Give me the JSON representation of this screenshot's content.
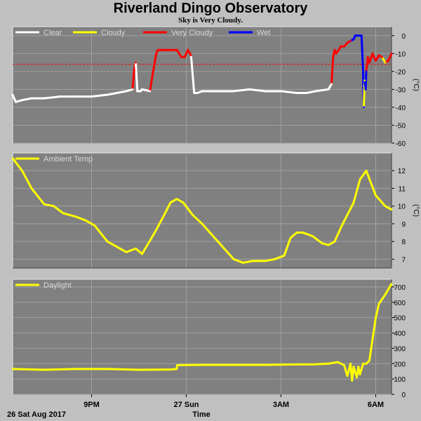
{
  "title": "Riverland Dingo Observatory",
  "subtitle": "Sky is Very Cloudy.",
  "x_axis": {
    "date_label": "26 Sat Aug 2017",
    "label": "Time",
    "ticks": [
      {
        "label": "9PM",
        "t": 2.5
      },
      {
        "label": "27 Sun",
        "t": 5.5
      },
      {
        "label": "3AM",
        "t": 8.5
      },
      {
        "label": "6AM",
        "t": 11.5
      }
    ],
    "start": "26 Aug 2017 18:30",
    "end": "27 Aug 2017 06:30"
  },
  "colors": {
    "background": "#c0c0c0",
    "plot": "#808080",
    "clear": "#ffffff",
    "cloudy": "#ffff00",
    "very_cloudy": "#ff0000",
    "wet": "#0000ff",
    "threshold": "#ff0000"
  },
  "chart_data": [
    {
      "type": "line",
      "ylabel": "(°C)",
      "ylim": [
        -60,
        5
      ],
      "yticks": [
        0,
        -10,
        -20,
        -30,
        -40,
        -50,
        -60
      ],
      "threshold": -16,
      "grid": true,
      "legend": [
        "Clear",
        "Cloudy",
        "Very Cloudy",
        "Wet"
      ],
      "series": [
        {
          "t": [
            0.0,
            0.1,
            0.3,
            0.6,
            1.0,
            1.5,
            2.0,
            2.5,
            3.0,
            3.3,
            3.6,
            3.8,
            3.85,
            3.9,
            3.95,
            4.05,
            4.1,
            4.35,
            4.45,
            4.55,
            4.6,
            4.7,
            5.2,
            5.35,
            5.45,
            5.55,
            5.65,
            5.75,
            5.85,
            6.0,
            6.5,
            7.0,
            7.5,
            8.0,
            8.5,
            9.0,
            9.3,
            9.6,
            10.0,
            10.1,
            10.15,
            10.2,
            10.25,
            10.4,
            10.5,
            10.6,
            10.7,
            10.8,
            10.85,
            10.9,
            11.0,
            11.05,
            11.1,
            11.12,
            11.15,
            11.18,
            11.2,
            11.25,
            11.3,
            11.4,
            11.5,
            11.6,
            11.7,
            11.8,
            11.9,
            12.0
          ],
          "y": [
            -33,
            -37,
            -36,
            -35,
            -35,
            -34,
            -34,
            -34,
            -33,
            -32,
            -31,
            -30,
            -19,
            -15,
            -31,
            -31,
            -30,
            -31,
            -20,
            -10,
            -8,
            -8,
            -8,
            -12,
            -12,
            -8,
            -11,
            -32,
            -32,
            -31,
            -31,
            -31,
            -30,
            -31,
            -31,
            -32,
            -32,
            -31,
            -30,
            -27,
            -12,
            -8,
            -10,
            -6,
            -6,
            -4,
            -3,
            -2,
            0,
            0,
            0,
            0,
            -20,
            -40,
            -25,
            -30,
            -20,
            -12,
            -15,
            -10,
            -14,
            -11,
            -12,
            -15,
            -14,
            -10
          ],
          "state": [
            "clear",
            "clear",
            "clear",
            "clear",
            "clear",
            "clear",
            "clear",
            "clear",
            "clear",
            "clear",
            "clear",
            "clear",
            "very_cloudy",
            "very_cloudy",
            "clear",
            "clear",
            "clear",
            "clear",
            "very_cloudy",
            "very_cloudy",
            "very_cloudy",
            "very_cloudy",
            "very_cloudy",
            "very_cloudy",
            "very_cloudy",
            "very_cloudy",
            "very_cloudy",
            "clear",
            "clear",
            "clear",
            "clear",
            "clear",
            "clear",
            "clear",
            "clear",
            "clear",
            "clear",
            "clear",
            "clear",
            "clear",
            "very_cloudy",
            "very_cloudy",
            "very_cloudy",
            "very_cloudy",
            "very_cloudy",
            "very_cloudy",
            "very_cloudy",
            "wet",
            "wet",
            "wet",
            "wet",
            "wet",
            "wet",
            "wet",
            "cloudy",
            "wet",
            "wet",
            "very_cloudy",
            "very_cloudy",
            "very_cloudy",
            "very_cloudy",
            "very_cloudy",
            "very_cloudy",
            "cloudy",
            "very_cloudy",
            "very_cloudy"
          ]
        }
      ]
    },
    {
      "type": "line",
      "ylabel": "(°C)",
      "ylim": [
        6.5,
        13
      ],
      "yticks": [
        12,
        11,
        10,
        9,
        8,
        7
      ],
      "grid": true,
      "legend": [
        "Ambient Temp"
      ],
      "series": [
        {
          "name": "Ambient Temp",
          "t": [
            0.0,
            0.3,
            0.6,
            1.0,
            1.3,
            1.6,
            2.0,
            2.3,
            2.6,
            3.0,
            3.3,
            3.6,
            3.9,
            4.1,
            4.5,
            4.8,
            5.0,
            5.2,
            5.4,
            5.7,
            6.0,
            6.5,
            7.0,
            7.3,
            7.6,
            8.0,
            8.3,
            8.6,
            8.8,
            9.0,
            9.2,
            9.5,
            9.8,
            10.0,
            10.2,
            10.4,
            10.6,
            10.8,
            11.0,
            11.2,
            11.5,
            11.8,
            12.0
          ],
          "values": [
            12.7,
            12.0,
            11.0,
            10.1,
            10.0,
            9.6,
            9.4,
            9.2,
            8.9,
            8.0,
            7.7,
            7.4,
            7.6,
            7.3,
            8.5,
            9.5,
            10.2,
            10.4,
            10.2,
            9.5,
            9.0,
            8.0,
            7.0,
            6.8,
            6.9,
            6.9,
            7.0,
            7.2,
            8.2,
            8.5,
            8.5,
            8.3,
            7.9,
            7.8,
            8.0,
            8.8,
            9.5,
            10.2,
            11.5,
            12.0,
            10.6,
            10.0,
            9.8
          ]
        }
      ]
    },
    {
      "type": "line",
      "ylabel": "",
      "ylim": [
        0,
        750
      ],
      "yticks": [
        700,
        600,
        500,
        400,
        300,
        200,
        100,
        0
      ],
      "grid": true,
      "legend": [
        "Daylight"
      ],
      "series": [
        {
          "name": "Daylight",
          "t": [
            0.0,
            1.0,
            2.0,
            3.0,
            4.0,
            5.0,
            5.2,
            5.21,
            6.0,
            7.0,
            8.0,
            9.0,
            9.5,
            10.0,
            10.3,
            10.5,
            10.6,
            10.7,
            10.75,
            10.8,
            10.9,
            10.95,
            11.0,
            11.1,
            11.2,
            11.3,
            11.5,
            11.6,
            11.8,
            12.0
          ],
          "values": [
            165,
            160,
            165,
            165,
            160,
            162,
            165,
            190,
            192,
            192,
            192,
            195,
            195,
            200,
            210,
            190,
            120,
            200,
            90,
            180,
            110,
            180,
            130,
            200,
            200,
            220,
            500,
            590,
            650,
            720
          ]
        }
      ]
    }
  ]
}
